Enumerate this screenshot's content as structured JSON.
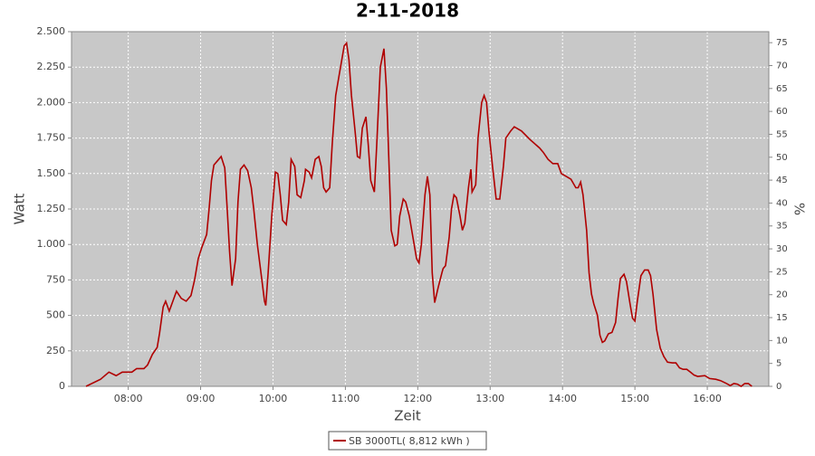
{
  "chart_data": {
    "type": "line",
    "title": "2-11-2018",
    "x_label": "Zeit",
    "y_label": "Watt",
    "y2_label": "%",
    "x": [
      "07:25",
      "07:37",
      "07:44",
      "07:50",
      "07:55",
      "08:03",
      "08:07",
      "08:13",
      "08:16",
      "08:20",
      "08:24",
      "08:26",
      "08:29",
      "08:31",
      "08:34",
      "08:37",
      "08:40",
      "08:44",
      "08:48",
      "08:52",
      "08:55",
      "08:58",
      "09:01",
      "09:05",
      "09:07",
      "09:09",
      "09:11",
      "09:14",
      "09:17",
      "09:20",
      "09:22",
      "09:24",
      "09:26",
      "09:29",
      "09:31",
      "09:33",
      "09:36",
      "09:39",
      "09:42",
      "09:44",
      "09:47",
      "09:50",
      "09:53",
      "09:54",
      "09:56",
      "09:59",
      "10:02",
      "10:04",
      "10:06",
      "10:08",
      "10:11",
      "10:13",
      "10:15",
      "10:18",
      "10:20",
      "10:23",
      "10:26",
      "10:27",
      "10:30",
      "10:32",
      "10:35",
      "10:38",
      "10:40",
      "10:42",
      "10:44",
      "10:47",
      "10:49",
      "10:52",
      "10:55",
      "10:57",
      "10:59",
      "11:01",
      "11:03",
      "11:05",
      "11:08",
      "11:10",
      "11:12",
      "11:14",
      "11:17",
      "11:19",
      "11:21",
      "11:24",
      "11:26",
      "11:29",
      "11:32",
      "11:34",
      "11:36",
      "11:38",
      "11:41",
      "11:43",
      "11:45",
      "11:48",
      "11:50",
      "11:53",
      "11:56",
      "11:59",
      "12:01",
      "12:03",
      "12:06",
      "12:08",
      "12:10",
      "12:12",
      "12:14",
      "12:17",
      "12:20",
      "12:21",
      "12:23",
      "12:26",
      "12:28",
      "12:30",
      "12:32",
      "12:35",
      "12:37",
      "12:39",
      "12:42",
      "12:44",
      "12:45",
      "12:48",
      "12:50",
      "12:53",
      "12:55",
      "12:57",
      "12:59",
      "13:02",
      "13:05",
      "13:08",
      "13:11",
      "13:13",
      "13:17",
      "13:20",
      "13:26",
      "13:33",
      "13:41",
      "13:44",
      "13:48",
      "13:52",
      "13:56",
      "13:59",
      "14:03",
      "14:07",
      "14:11",
      "14:13",
      "14:15",
      "14:17",
      "14:20",
      "14:22",
      "14:24",
      "14:26",
      "14:29",
      "14:31",
      "14:33",
      "14:35",
      "14:38",
      "14:41",
      "14:44",
      "14:46",
      "14:48",
      "14:51",
      "14:53",
      "14:56",
      "14:58",
      "15:00",
      "15:02",
      "15:05",
      "15:08",
      "15:11",
      "15:13",
      "15:15",
      "15:18",
      "15:21",
      "15:24",
      "15:27",
      "15:31",
      "15:34",
      "15:37",
      "15:40",
      "15:43",
      "15:46",
      "15:49",
      "15:52",
      "15:58",
      "16:02",
      "16:07",
      "16:11",
      "16:16",
      "16:19",
      "16:22",
      "16:25",
      "16:28",
      "16:31",
      "16:34",
      "16:37"
    ],
    "series": [
      {
        "name": "SB 3000TL( 8,812 kWh )",
        "color": "#b00000",
        "values": [
          0,
          50,
          100,
          75,
          100,
          100,
          125,
          125,
          150,
          225,
          275,
          375,
          560,
          600,
          530,
          600,
          670,
          620,
          600,
          640,
          750,
          900,
          980,
          1070,
          1250,
          1450,
          1560,
          1590,
          1620,
          1540,
          1250,
          950,
          710,
          900,
          1300,
          1530,
          1560,
          1520,
          1400,
          1250,
          1000,
          800,
          600,
          570,
          800,
          1200,
          1510,
          1500,
          1350,
          1170,
          1140,
          1300,
          1600,
          1550,
          1350,
          1330,
          1450,
          1530,
          1510,
          1470,
          1600,
          1620,
          1550,
          1400,
          1370,
          1400,
          1700,
          2050,
          2200,
          2300,
          2400,
          2420,
          2300,
          2050,
          1800,
          1620,
          1610,
          1820,
          1900,
          1700,
          1450,
          1370,
          1700,
          2250,
          2380,
          2100,
          1600,
          1100,
          990,
          1000,
          1200,
          1320,
          1300,
          1200,
          1050,
          900,
          870,
          1000,
          1350,
          1480,
          1350,
          800,
          590,
          700,
          800,
          830,
          850,
          1050,
          1250,
          1350,
          1330,
          1200,
          1100,
          1150,
          1400,
          1530,
          1370,
          1420,
          1750,
          2000,
          2050,
          2000,
          1800,
          1550,
          1320,
          1320,
          1550,
          1750,
          1800,
          1830,
          1800,
          1740,
          1680,
          1650,
          1600,
          1570,
          1570,
          1500,
          1480,
          1460,
          1400,
          1400,
          1440,
          1350,
          1100,
          800,
          650,
          580,
          500,
          360,
          310,
          320,
          370,
          380,
          450,
          620,
          760,
          790,
          740,
          580,
          480,
          460,
          600,
          780,
          820,
          820,
          780,
          650,
          400,
          270,
          210,
          170,
          165,
          165,
          130,
          120,
          120,
          100,
          80,
          70,
          75,
          55,
          50,
          40,
          20,
          5,
          20,
          15,
          0,
          20,
          20,
          0
        ]
      }
    ],
    "xlim": [
      "07:13",
      "16:51"
    ],
    "xticks": [
      "08:00",
      "09:00",
      "10:00",
      "11:00",
      "12:00",
      "13:00",
      "14:00",
      "15:00",
      "16:00"
    ],
    "ylim": [
      0,
      2500
    ],
    "yticks": [
      0,
      250,
      500,
      750,
      {
        "value": 1000,
        "label": "1.000"
      },
      {
        "value": 1250,
        "label": "1.250"
      },
      {
        "value": 1500,
        "label": "1.500"
      },
      {
        "value": 1750,
        "label": "1.750"
      },
      {
        "value": 2000,
        "label": "2.000"
      },
      {
        "value": 2250,
        "label": "2.250"
      },
      {
        "value": 2500,
        "label": "2.500"
      }
    ],
    "y2lim": [
      0,
      77.4
    ],
    "y2ticks": [
      0,
      5,
      10,
      15,
      20,
      25,
      30,
      35,
      40,
      45,
      50,
      55,
      60,
      65,
      70,
      75
    ],
    "grid": true,
    "legend": "bottom"
  }
}
